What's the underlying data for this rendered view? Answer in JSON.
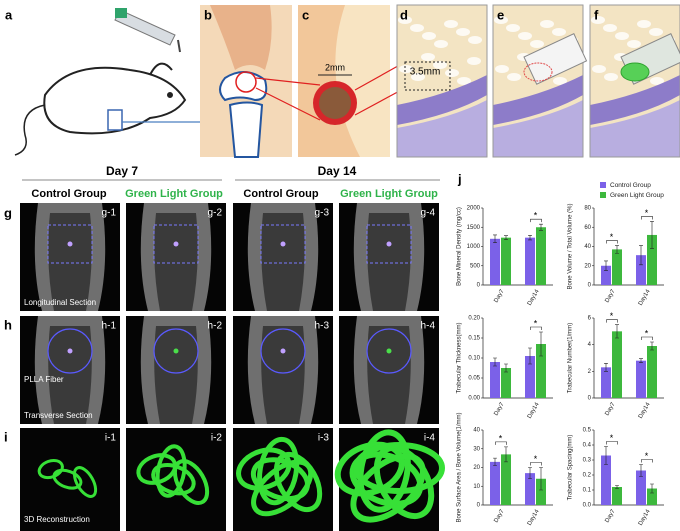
{
  "panel_labels": [
    "a",
    "b",
    "c",
    "d",
    "e",
    "f",
    "g",
    "h",
    "i",
    "j"
  ],
  "scale_labels": [
    "2mm",
    "3.5mm"
  ],
  "days": [
    "Day 7",
    "Day 14"
  ],
  "groups": [
    "Control Group",
    "Green Light Group",
    "Control Group",
    "Green Light Group"
  ],
  "image_labels": [
    [
      "g-1",
      "g-2",
      "g-3",
      "g-4"
    ],
    [
      "h-1",
      "h-2",
      "h-3",
      "h-4"
    ],
    [
      "i-1",
      "i-2",
      "i-3",
      "i-4"
    ]
  ],
  "captions": [
    "Longitudinal Section",
    "PLLA Fiber",
    "Transverse Section",
    "3D Reconstruction"
  ],
  "chart_data": [
    {
      "type": "bar",
      "y_label": "Bone Mineral Density (mg/cc)",
      "categories": [
        "Day7",
        "Day14"
      ],
      "series": [
        {
          "name": "Control Group",
          "color": "#7b61e8",
          "values": [
            1200,
            1230
          ],
          "errors": [
            100,
            60
          ]
        },
        {
          "name": "Green Light Group",
          "color": "#3db83d",
          "values": [
            1230,
            1500
          ],
          "errors": [
            50,
            80
          ]
        }
      ],
      "ylim": [
        0,
        2000
      ],
      "yticks": [
        0,
        500,
        1000,
        1500,
        2000
      ],
      "significance": [
        {
          "category": "Day14",
          "label": "*"
        }
      ]
    },
    {
      "type": "bar",
      "y_label": "Bone Volume / Total Volume (%)",
      "categories": [
        "Day7",
        "Day14"
      ],
      "series": [
        {
          "color": "#7b61e8",
          "values": [
            20,
            31
          ],
          "errors": [
            5,
            10
          ]
        },
        {
          "color": "#3db83d",
          "values": [
            37,
            52
          ],
          "errors": [
            4,
            14
          ]
        }
      ],
      "ylim": [
        0,
        80
      ],
      "yticks": [
        0,
        20,
        40,
        60,
        80
      ],
      "significance": [
        {
          "category": "Day7",
          "label": "*"
        },
        {
          "category": "Day14",
          "label": "*"
        }
      ]
    },
    {
      "type": "bar",
      "y_label": "Trabecular Thickness(mm)",
      "categories": [
        "Day7",
        "Day14"
      ],
      "series": [
        {
          "color": "#7b61e8",
          "values": [
            0.09,
            0.105
          ],
          "errors": [
            0.01,
            0.02
          ]
        },
        {
          "color": "#3db83d",
          "values": [
            0.075,
            0.135
          ],
          "errors": [
            0.01,
            0.03
          ]
        }
      ],
      "ylim": [
        0,
        0.2
      ],
      "yticks": [
        {
          "value": 0,
          "label": "0.00"
        },
        0.05,
        {
          "value": 0.1,
          "label": "0.10"
        },
        0.15,
        {
          "value": 0.2,
          "label": "0.20"
        }
      ],
      "significance": [
        {
          "category": "Day14",
          "label": "*"
        }
      ]
    },
    {
      "type": "bar",
      "y_label": "Trabecular Number(1/mm)",
      "categories": [
        "Day7",
        "Day14"
      ],
      "series": [
        {
          "color": "#7b61e8",
          "values": [
            2.3,
            2.8
          ],
          "errors": [
            0.3,
            0.15
          ]
        },
        {
          "color": "#3db83d",
          "values": [
            5.0,
            3.9
          ],
          "errors": [
            0.5,
            0.3
          ]
        }
      ],
      "ylim": [
        0,
        6
      ],
      "yticks": [
        0,
        2,
        4,
        6
      ],
      "significance": [
        {
          "category": "Day7",
          "label": "*"
        },
        {
          "category": "Day14",
          "label": "*"
        }
      ]
    },
    {
      "type": "bar",
      "y_label": "Bone Surface Area / Bone Volume(1/mm)",
      "categories": [
        "Day7",
        "Day14"
      ],
      "series": [
        {
          "color": "#7b61e8",
          "values": [
            23,
            17
          ],
          "errors": [
            2,
            3
          ]
        },
        {
          "color": "#3db83d",
          "values": [
            27,
            14
          ],
          "errors": [
            4,
            6
          ]
        }
      ],
      "ylim": [
        0,
        40
      ],
      "yticks": [
        0,
        10,
        20,
        30,
        40
      ],
      "significance": [
        {
          "category": "Day7",
          "label": "*"
        },
        {
          "category": "Day14",
          "label": "*"
        }
      ]
    },
    {
      "type": "bar",
      "y_label": "Trabecular Spacing(mm)",
      "categories": [
        "Day7",
        "Day14"
      ],
      "series": [
        {
          "color": "#7b61e8",
          "values": [
            0.33,
            0.23
          ],
          "errors": [
            0.06,
            0.04
          ]
        },
        {
          "color": "#3db83d",
          "values": [
            0.12,
            0.11
          ],
          "errors": [
            0.01,
            0.03
          ]
        }
      ],
      "ylim": [
        0,
        0.5
      ],
      "yticks": [
        {
          "value": 0,
          "label": "0.0"
        },
        0.1,
        0.2,
        0.3,
        0.4,
        0.5
      ],
      "significance": [
        {
          "category": "Day7",
          "label": "*"
        },
        {
          "category": "Day14",
          "label": "*"
        }
      ]
    }
  ]
}
